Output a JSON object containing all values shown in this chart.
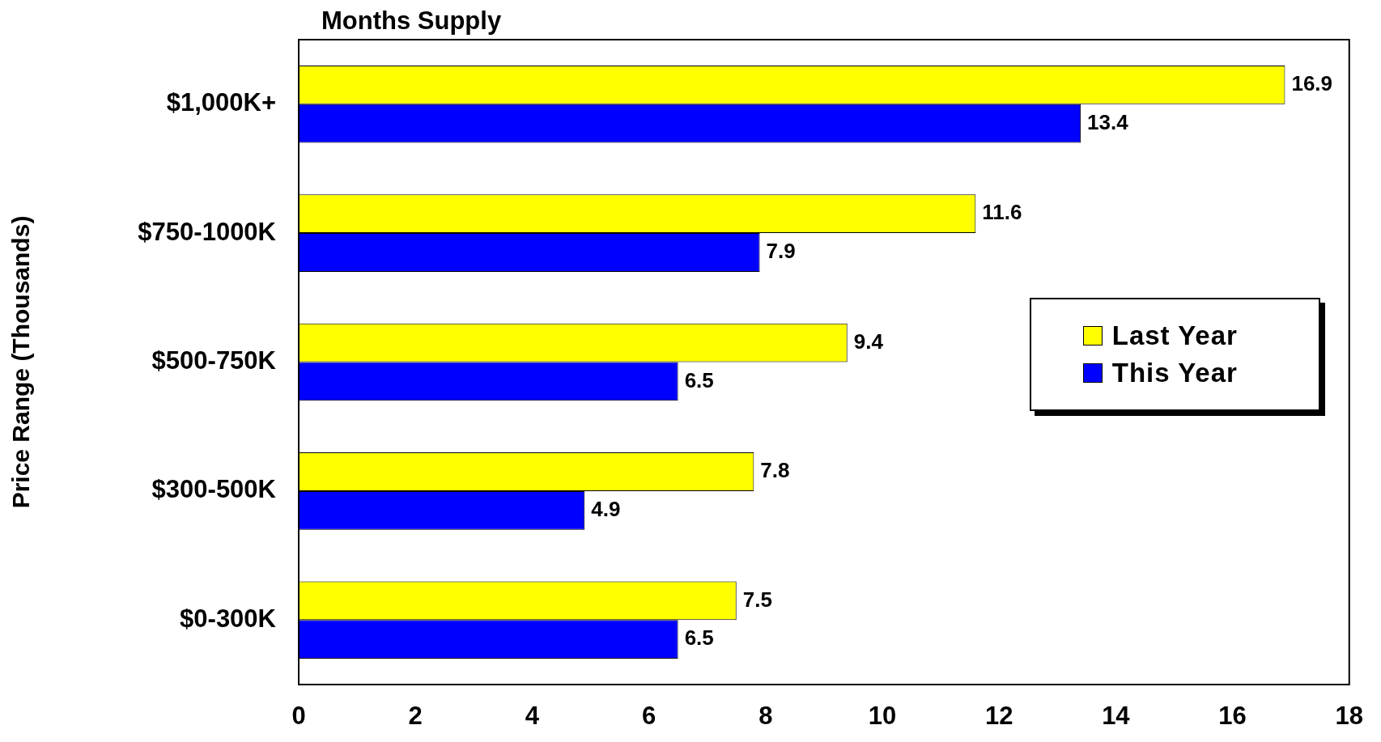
{
  "chart_data": {
    "type": "bar",
    "orientation": "horizontal",
    "title": "Months Supply",
    "ylabel": "Price Range (Thousands)",
    "categories": [
      "$1,000K+",
      "$750-1000K",
      "$500-750K",
      "$300-500K",
      "$0-300K"
    ],
    "series": [
      {
        "name": "Last Year",
        "color": "#ffff00",
        "values": [
          16.9,
          11.6,
          9.4,
          7.8,
          7.5
        ]
      },
      {
        "name": "This Year",
        "color": "#0000ff",
        "values": [
          13.4,
          7.9,
          6.5,
          4.9,
          6.5
        ]
      }
    ],
    "xlim": [
      0,
      18
    ],
    "xticks": [
      0,
      2,
      4,
      6,
      8,
      10,
      12,
      14,
      16,
      18
    ],
    "grid": false,
    "legend": "right",
    "data_labels": true
  }
}
